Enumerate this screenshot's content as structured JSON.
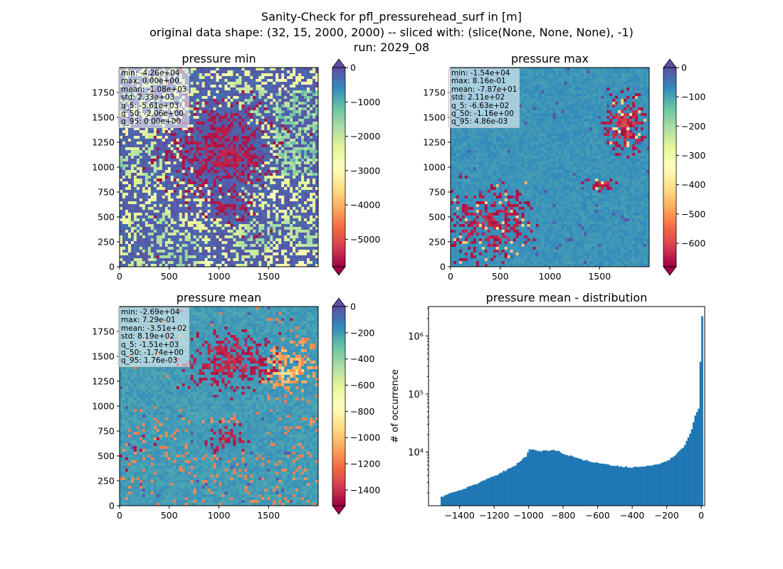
{
  "figure": {
    "title_lines": [
      "Sanity-Check for pfl_pressurehead_surf in [m]",
      "original data shape: (32, 15, 2000, 2000) -- sliced with: (slice(None, None, None), -1)",
      "run: 2029_08"
    ]
  },
  "chart_data": [
    {
      "type": "heatmap",
      "title": "pressure min",
      "xlim": [
        0,
        2000
      ],
      "ylim": [
        0,
        2000
      ],
      "xticks": [
        "0",
        "500",
        "1000",
        "1500"
      ],
      "yticks": [
        "0",
        "250",
        "500",
        "750",
        "1000",
        "1250",
        "1500",
        "1750"
      ],
      "colorbar": {
        "min": -5800,
        "max": 0,
        "ticks": [
          "0",
          "−1000",
          "−2000",
          "−3000",
          "−4000",
          "−5000"
        ],
        "extend": "both"
      },
      "stats": [
        "min: -4.26e+04",
        "max: 0.00e+00",
        "mean: -1.08e+03",
        "std: 2.33e+03",
        "q_5: -5.61e+03",
        "q_50: -2.06e+00",
        "q_95: 0.00e+00"
      ]
    },
    {
      "type": "heatmap",
      "title": "pressure max",
      "xlim": [
        0,
        2000
      ],
      "ylim": [
        0,
        2000
      ],
      "xticks": [
        "0",
        "500",
        "1000",
        "1500"
      ],
      "yticks": [
        "0",
        "250",
        "500",
        "750",
        "1000",
        "1250",
        "1500",
        "1750"
      ],
      "colorbar": {
        "min": -680,
        "max": 0,
        "ticks": [
          "0",
          "−100",
          "−200",
          "−300",
          "−400",
          "−500",
          "−600"
        ],
        "extend": "both"
      },
      "stats": [
        "min: -1.54e+04",
        "max: 8.16e-01",
        "mean: -7.87e+01",
        "std: 2.11e+02",
        "q_5: -6.63e+02",
        "q_50: -1.16e+00",
        "q_95: 4.86e-03"
      ]
    },
    {
      "type": "heatmap",
      "title": "pressure mean",
      "xlim": [
        0,
        2000
      ],
      "ylim": [
        0,
        2000
      ],
      "xticks": [
        "0",
        "500",
        "1000",
        "1500"
      ],
      "yticks": [
        "0",
        "250",
        "500",
        "750",
        "1000",
        "1250",
        "1500",
        "1750"
      ],
      "colorbar": {
        "min": -1520,
        "max": 0,
        "ticks": [
          "0",
          "−200",
          "−400",
          "−600",
          "−800",
          "−1000",
          "−1200",
          "−1400"
        ],
        "extend": "both"
      },
      "stats": [
        "min: -2.69e+04",
        "max: 7.29e-01",
        "mean: -3.51e+02",
        "std: 8.19e+02",
        "q_5: -1.51e+03",
        "q_50: -1.74e+00",
        "q_95: 1.76e-03"
      ]
    },
    {
      "type": "bar",
      "title": "pressure mean - distribution",
      "ylabel": "# of occurrence",
      "yscale": "log",
      "xlim": [
        -1580,
        20
      ],
      "ylim": [
        1200,
        3200000
      ],
      "xticks": [
        "−1400",
        "−1200",
        "−1000",
        "−800",
        "−600",
        "−400",
        "−200",
        "0"
      ],
      "yticks": [
        "10⁴",
        "10⁵",
        "10⁶"
      ],
      "color": "#1f77b4",
      "bins": {
        "start": -1510,
        "width": 10,
        "count": 152
      },
      "profile_points": [
        [
          -1510,
          1700
        ],
        [
          -1400,
          2200
        ],
        [
          -1300,
          2900
        ],
        [
          -1200,
          3900
        ],
        [
          -1100,
          5400
        ],
        [
          -1050,
          6800
        ],
        [
          -1010,
          8800
        ],
        [
          -1000,
          11500
        ],
        [
          -950,
          10500
        ],
        [
          -900,
          10600
        ],
        [
          -850,
          10900
        ],
        [
          -800,
          9500
        ],
        [
          -700,
          7600
        ],
        [
          -600,
          6600
        ],
        [
          -500,
          5800
        ],
        [
          -400,
          5500
        ],
        [
          -300,
          5800
        ],
        [
          -250,
          6200
        ],
        [
          -200,
          7000
        ],
        [
          -150,
          8800
        ],
        [
          -100,
          12500
        ],
        [
          -70,
          19000
        ],
        [
          -50,
          28000
        ],
        [
          -30,
          48000
        ],
        [
          -20,
          52000
        ],
        [
          -10,
          58000
        ],
        [
          0,
          2200000
        ]
      ]
    }
  ]
}
